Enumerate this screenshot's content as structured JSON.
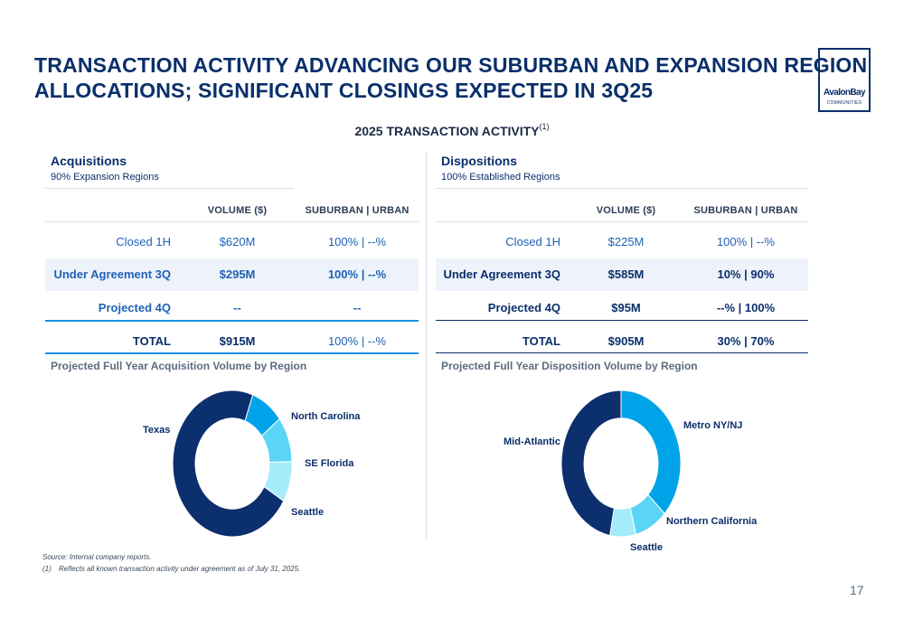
{
  "header": {
    "title_line1": "TRANSACTION ACTIVITY ADVANCING OUR SUBURBAN AND EXPANSION REGION",
    "title_line2": "ALLOCATIONS; SIGNIFICANT CLOSINGS EXPECTED IN 3Q25",
    "logo_text": "AvalonBay",
    "logo_sub": "COMMUNITIES"
  },
  "subtitle": {
    "text": "2025 TRANSACTION ACTIVITY",
    "footnote_ref": "(1)"
  },
  "acquisitions": {
    "heading": "Acquisitions",
    "subheading": "90% Expansion Regions",
    "col_volume": "VOLUME ($)",
    "col_mix": "SUBURBAN | URBAN",
    "rows": [
      {
        "label": "Closed 1H",
        "volume": "$620M",
        "mix": "100% | --%"
      },
      {
        "label": "Under Agreement 3Q",
        "volume": "$295M",
        "mix": "100% | --%"
      },
      {
        "label": "Projected 4Q",
        "volume": "--",
        "mix": "--"
      },
      {
        "label": "TOTAL",
        "volume": "$915M",
        "mix": "100% | --%"
      }
    ]
  },
  "dispositions": {
    "heading": "Dispositions",
    "subheading": "100% Established Regions",
    "col_volume": "VOLUME ($)",
    "col_mix": "SUBURBAN | URBAN",
    "rows": [
      {
        "label": "Closed 1H",
        "volume": "$225M",
        "mix": "100% | --%"
      },
      {
        "label": "Under Agreement 3Q",
        "volume": "$585M",
        "mix": "10% | 90%"
      },
      {
        "label": "Projected 4Q",
        "volume": "$95M",
        "mix": "--% | 100%"
      },
      {
        "label": "TOTAL",
        "volume": "$905M",
        "mix": "30% | 70%"
      }
    ]
  },
  "chart_data": [
    {
      "type": "pie",
      "title": "Projected Full Year Acquisition Volume by Region",
      "categories": [
        "North Carolina",
        "SE Florida",
        "Seattle",
        "Texas"
      ],
      "values": [
        9,
        10,
        9,
        72
      ],
      "colors": [
        "#00a3e8",
        "#5ad5f6",
        "#a5ecfb",
        "#0c2f6e"
      ],
      "start_angle_deg": 20
    },
    {
      "type": "pie",
      "title": "Projected Full Year Disposition Volume by Region",
      "categories": [
        "Metro NY/NJ",
        "Northern California",
        "Seattle",
        "Mid-Atlantic"
      ],
      "values": [
        37,
        9,
        7,
        47
      ],
      "colors": [
        "#00a3e8",
        "#5ad5f6",
        "#a5ecfb",
        "#0c2f6e"
      ],
      "start_angle_deg": 0
    }
  ],
  "footer": {
    "source": "Source:  Internal company reports.",
    "note_num": "(1)",
    "note_text": "Reflects all known transaction activity under agreement as of July 31, 2025.",
    "page": "17"
  }
}
